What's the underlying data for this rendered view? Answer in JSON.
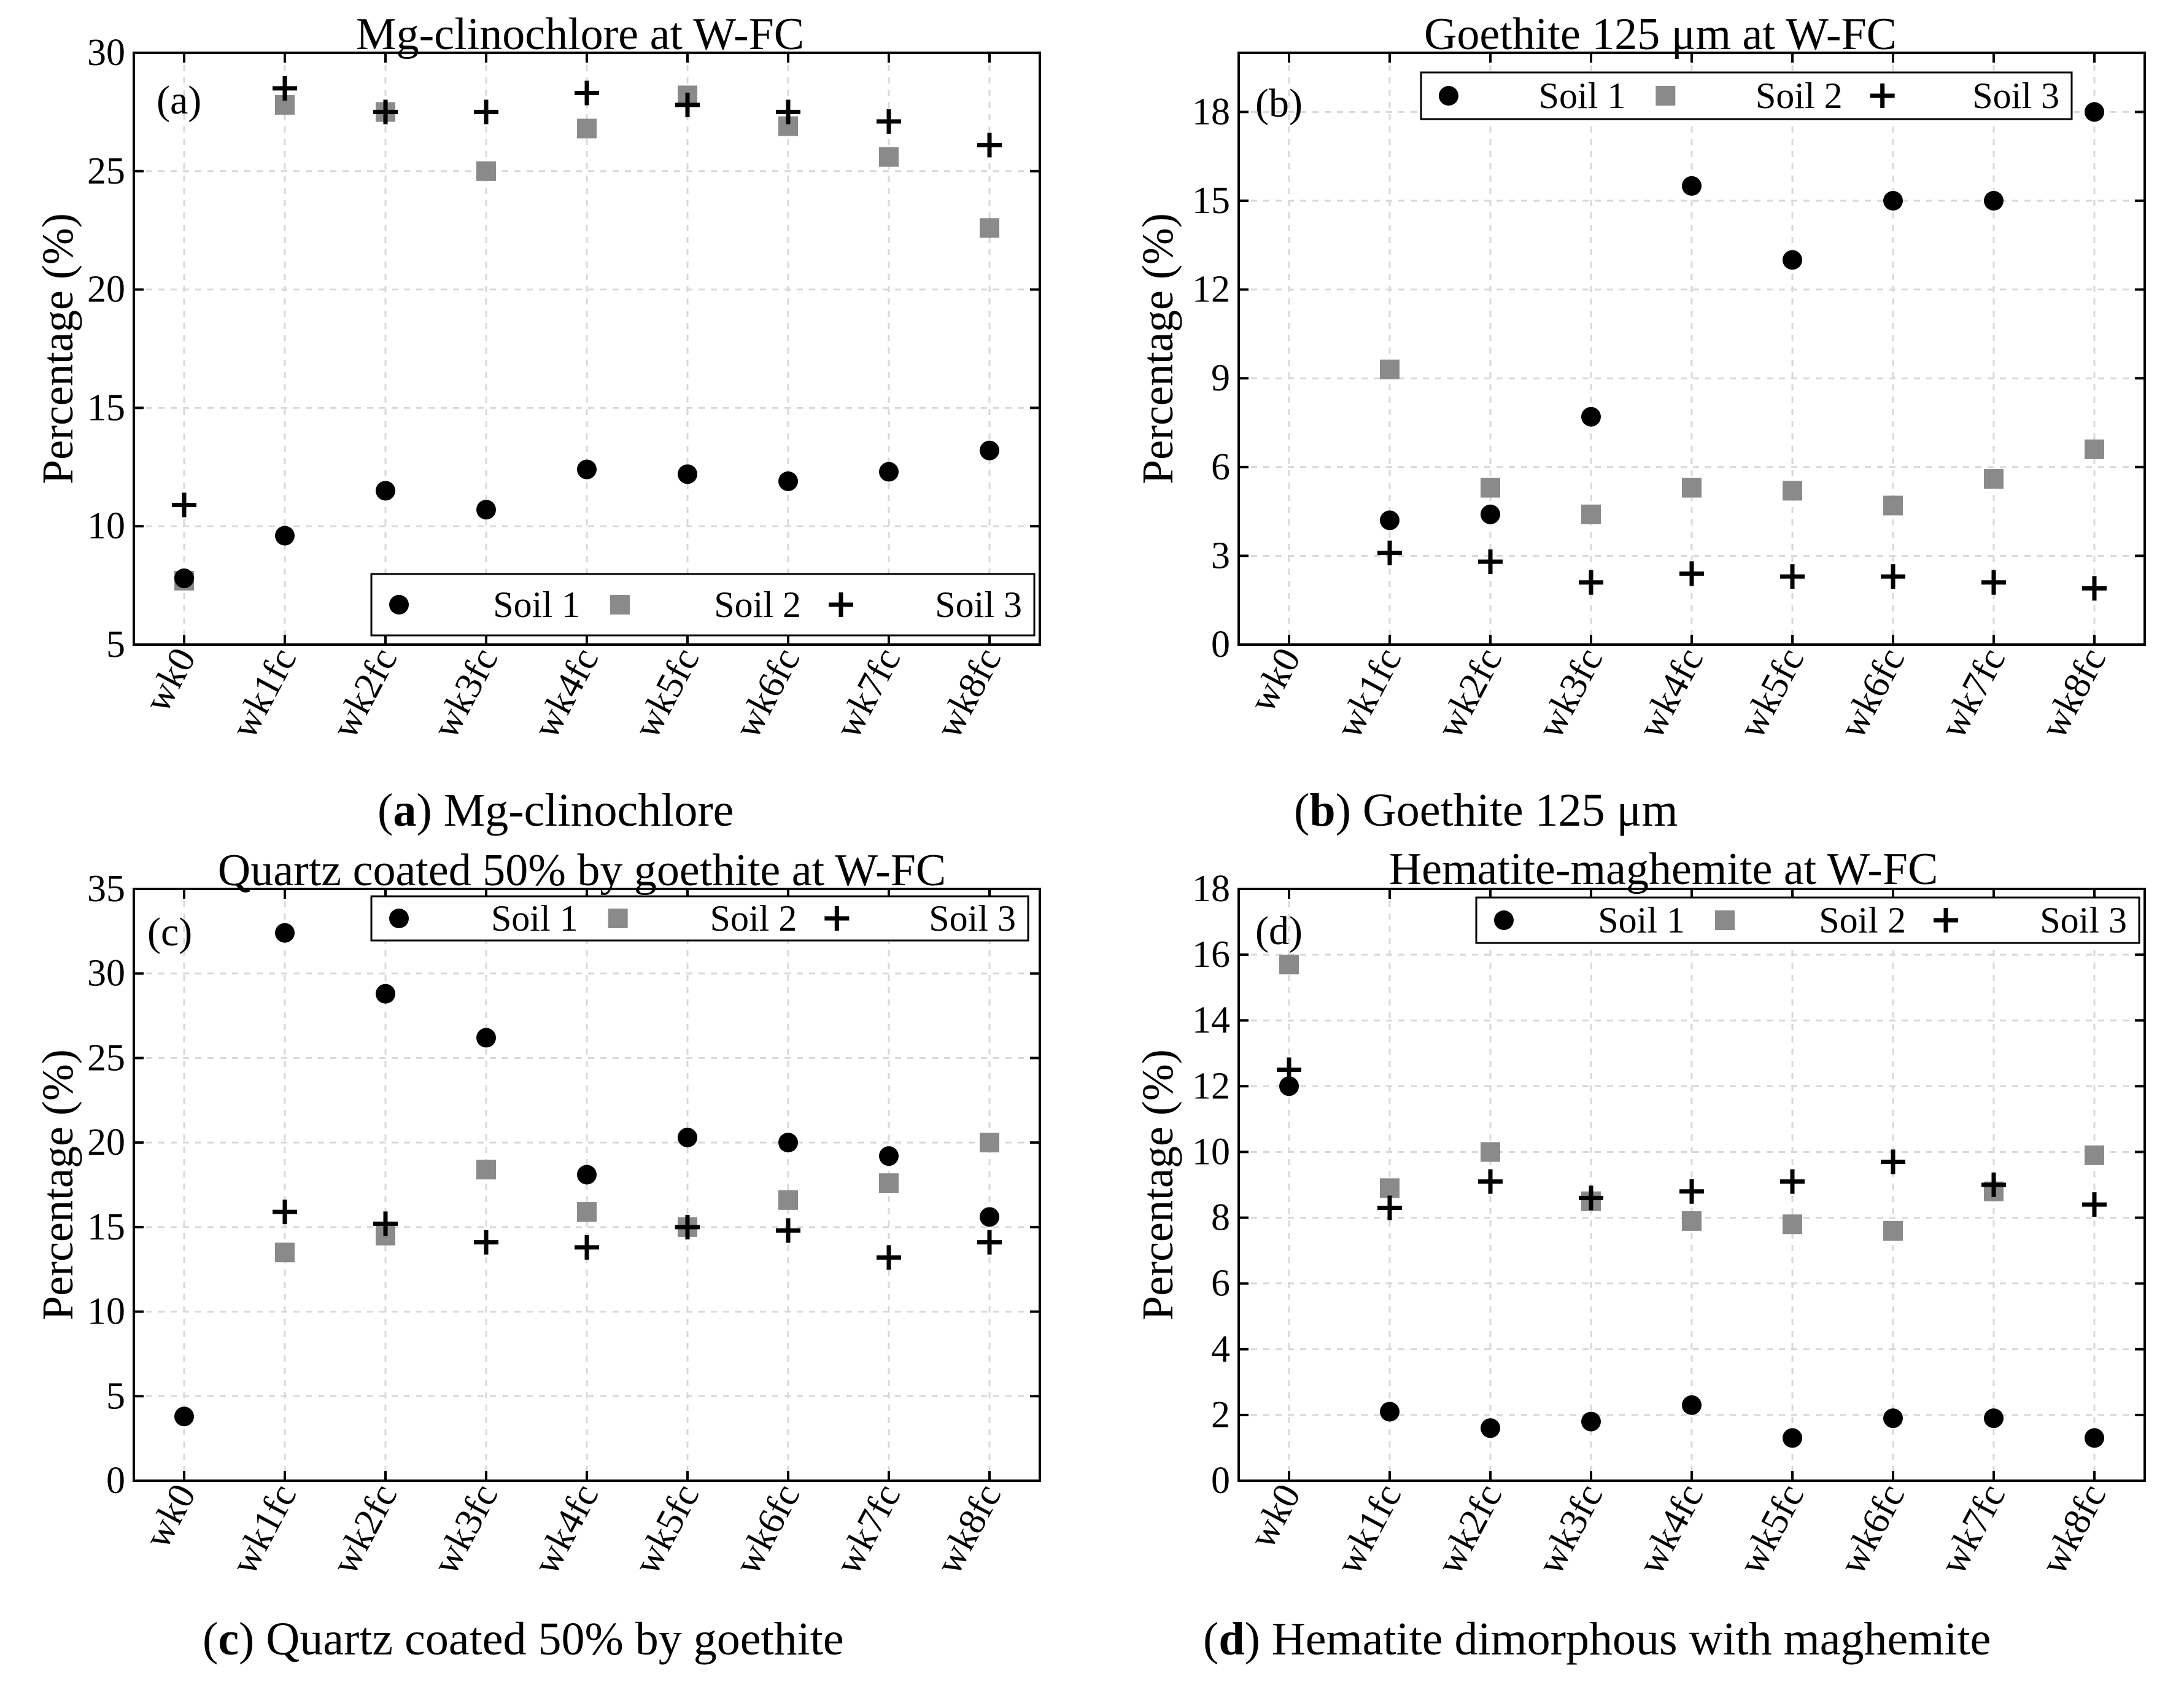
{
  "chart_data": [
    {
      "type": "scatter",
      "panel": "(a)",
      "title": "Mg-clinochlore at W-FC",
      "caption_bold": "a",
      "caption_rest": ") Mg-clinochlore",
      "xlabel": "",
      "ylabel": "Percentage (%)",
      "categories": [
        "wk0",
        "wk1fc",
        "wk2fc",
        "wk3fc",
        "wk4fc",
        "wk5fc",
        "wk6fc",
        "wk7fc",
        "wk8fc"
      ],
      "ylim": [
        5,
        30
      ],
      "yticks": [
        5,
        10,
        15,
        20,
        25,
        30
      ],
      "ytick_labels": [
        "5",
        "10",
        "15",
        "20",
        "25",
        "30"
      ],
      "legend_position": "bottom-right",
      "series": [
        {
          "name": "Soil 1",
          "marker": "circle",
          "values": [
            7.8,
            9.6,
            11.5,
            10.7,
            12.4,
            12.2,
            11.9,
            12.3,
            13.2
          ]
        },
        {
          "name": "Soil 2",
          "marker": "square",
          "values": [
            7.7,
            27.8,
            27.5,
            25.0,
            26.8,
            28.2,
            26.9,
            25.6,
            22.6
          ]
        },
        {
          "name": "Soil 3",
          "marker": "plus",
          "values": [
            10.9,
            28.5,
            27.5,
            27.5,
            28.3,
            27.8,
            27.5,
            27.1,
            26.1
          ]
        }
      ]
    },
    {
      "type": "scatter",
      "panel": "(b)",
      "title": "Goethite 125 μm at W-FC",
      "caption_bold": "b",
      "caption_rest": ") Goethite 125 μm",
      "xlabel": "",
      "ylabel": "Percentage (%)",
      "categories": [
        "wk0",
        "wk1fc",
        "wk2fc",
        "wk3fc",
        "wk4fc",
        "wk5fc",
        "wk6fc",
        "wk7fc",
        "wk8fc"
      ],
      "ylim": [
        0,
        20
      ],
      "yticks": [
        0,
        3,
        6,
        9,
        12,
        15,
        18
      ],
      "ytick_labels": [
        "0",
        "3",
        "6",
        "9",
        "12",
        "15",
        "18"
      ],
      "legend_position": "top-right",
      "series": [
        {
          "name": "Soil 1",
          "marker": "circle",
          "values": [
            null,
            4.2,
            4.4,
            7.7,
            15.5,
            13.0,
            15.0,
            15.0,
            18.0
          ]
        },
        {
          "name": "Soil 2",
          "marker": "square",
          "values": [
            null,
            9.3,
            5.3,
            4.4,
            5.3,
            5.2,
            4.7,
            5.6,
            6.6
          ]
        },
        {
          "name": "Soil 3",
          "marker": "plus",
          "values": [
            null,
            3.1,
            2.8,
            2.1,
            2.4,
            2.3,
            2.3,
            2.1,
            1.9
          ]
        }
      ]
    },
    {
      "type": "scatter",
      "panel": "(c)",
      "title": "Quartz coated 50% by goethite at W-FC",
      "caption_bold": "c",
      "caption_rest": ") Quartz coated 50% by goethite",
      "xlabel": "",
      "ylabel": "Percentage (%)",
      "categories": [
        "wk0",
        "wk1fc",
        "wk2fc",
        "wk3fc",
        "wk4fc",
        "wk5fc",
        "wk6fc",
        "wk7fc",
        "wk8fc"
      ],
      "ylim": [
        0,
        35
      ],
      "yticks": [
        0,
        5,
        10,
        15,
        20,
        25,
        30,
        35
      ],
      "ytick_labels": [
        "0",
        "5",
        "10",
        "15",
        "20",
        "25",
        "30",
        "35"
      ],
      "legend_position": "top-right",
      "series": [
        {
          "name": "Soil 1",
          "marker": "circle",
          "values": [
            3.8,
            32.4,
            28.8,
            26.2,
            18.1,
            20.3,
            20.0,
            19.2,
            15.6
          ]
        },
        {
          "name": "Soil 2",
          "marker": "square",
          "values": [
            null,
            13.5,
            14.5,
            18.4,
            15.9,
            15.0,
            16.6,
            17.6,
            20.0
          ]
        },
        {
          "name": "Soil 3",
          "marker": "plus",
          "values": [
            null,
            15.9,
            15.2,
            14.1,
            13.8,
            15.0,
            14.8,
            13.2,
            14.1
          ]
        }
      ]
    },
    {
      "type": "scatter",
      "panel": "(d)",
      "title": "Hematite-maghemite at W-FC",
      "caption_bold": "d",
      "caption_rest": ") Hematite dimorphous with maghemite",
      "xlabel": "",
      "ylabel": "Percentage (%)",
      "categories": [
        "wk0",
        "wk1fc",
        "wk2fc",
        "wk3fc",
        "wk4fc",
        "wk5fc",
        "wk6fc",
        "wk7fc",
        "wk8fc"
      ],
      "ylim": [
        0,
        18
      ],
      "yticks": [
        0,
        2,
        4,
        6,
        8,
        10,
        12,
        14,
        16,
        18
      ],
      "ytick_labels": [
        "0",
        "2",
        "4",
        "6",
        "8",
        "10",
        "12",
        "14",
        "16",
        "18"
      ],
      "legend_position": "top-right",
      "series": [
        {
          "name": "Soil 1",
          "marker": "circle",
          "values": [
            12.0,
            2.1,
            1.6,
            1.8,
            2.3,
            1.3,
            1.9,
            1.9,
            1.3
          ]
        },
        {
          "name": "Soil 2",
          "marker": "square",
          "values": [
            15.7,
            8.9,
            10.0,
            8.5,
            7.9,
            7.8,
            7.6,
            8.8,
            9.9
          ]
        },
        {
          "name": "Soil 3",
          "marker": "plus",
          "values": [
            12.5,
            8.3,
            9.1,
            8.6,
            8.8,
            9.1,
            9.7,
            9.0,
            8.4
          ]
        }
      ]
    }
  ]
}
